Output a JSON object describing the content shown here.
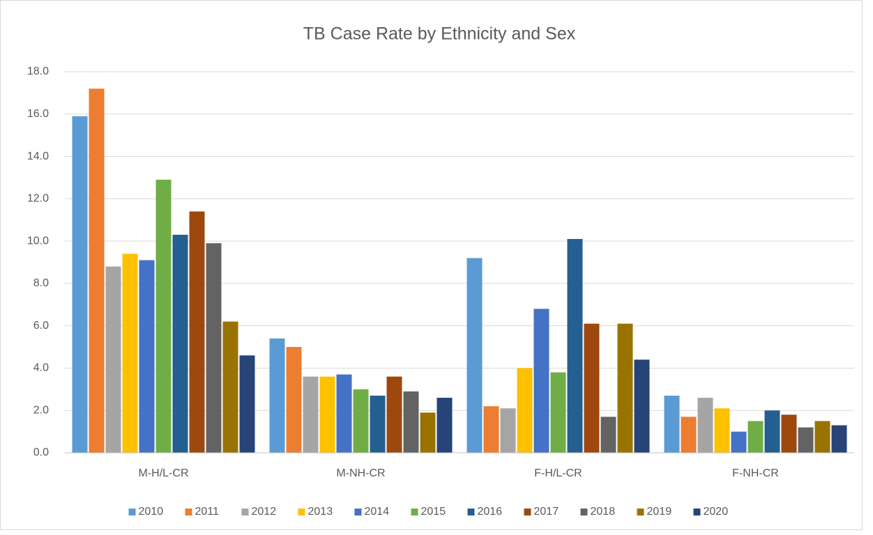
{
  "chart_data": {
    "type": "bar",
    "title": "TB Case Rate by Ethnicity and Sex",
    "categories": [
      "M-H/L-CR",
      "M-NH-CR",
      "F-H/L-CR",
      "F-NH-CR"
    ],
    "series": [
      {
        "name": "2010",
        "color": "#5b9bd5",
        "values": [
          15.9,
          5.4,
          9.2,
          2.7
        ]
      },
      {
        "name": "2011",
        "color": "#ed7d31",
        "values": [
          17.2,
          5.0,
          2.2,
          1.7
        ]
      },
      {
        "name": "2012",
        "color": "#a5a5a5",
        "values": [
          8.8,
          3.6,
          2.1,
          2.6
        ]
      },
      {
        "name": "2013",
        "color": "#ffc000",
        "values": [
          9.4,
          3.6,
          4.0,
          2.1
        ]
      },
      {
        "name": "2014",
        "color": "#4472c4",
        "values": [
          9.1,
          3.7,
          6.8,
          1.0
        ]
      },
      {
        "name": "2015",
        "color": "#70ad47",
        "values": [
          12.9,
          3.0,
          3.8,
          1.5
        ]
      },
      {
        "name": "2016",
        "color": "#255e91",
        "values": [
          10.3,
          2.7,
          10.1,
          2.0
        ]
      },
      {
        "name": "2017",
        "color": "#9e480e",
        "values": [
          11.4,
          3.6,
          6.1,
          1.8
        ]
      },
      {
        "name": "2018",
        "color": "#636363",
        "values": [
          9.9,
          2.9,
          1.7,
          1.2
        ]
      },
      {
        "name": "2019",
        "color": "#997300",
        "values": [
          6.2,
          1.9,
          6.1,
          1.5
        ]
      },
      {
        "name": "2020",
        "color": "#264478",
        "values": [
          4.6,
          2.6,
          4.4,
          1.3
        ]
      }
    ],
    "ylim": [
      0,
      18
    ],
    "yticks": [
      {
        "value": 0,
        "label": "0.0"
      },
      {
        "value": 2,
        "label": "2.0"
      },
      {
        "value": 4,
        "label": "4.0"
      },
      {
        "value": 6,
        "label": "6.0"
      },
      {
        "value": 8,
        "label": "8.0"
      },
      {
        "value": 10,
        "label": "10.0"
      },
      {
        "value": 12,
        "label": "12.0"
      },
      {
        "value": 14,
        "label": "14.0"
      },
      {
        "value": 16,
        "label": "16.0"
      },
      {
        "value": 18,
        "label": "18.0"
      }
    ],
    "grid": true,
    "legend": "bottom"
  }
}
